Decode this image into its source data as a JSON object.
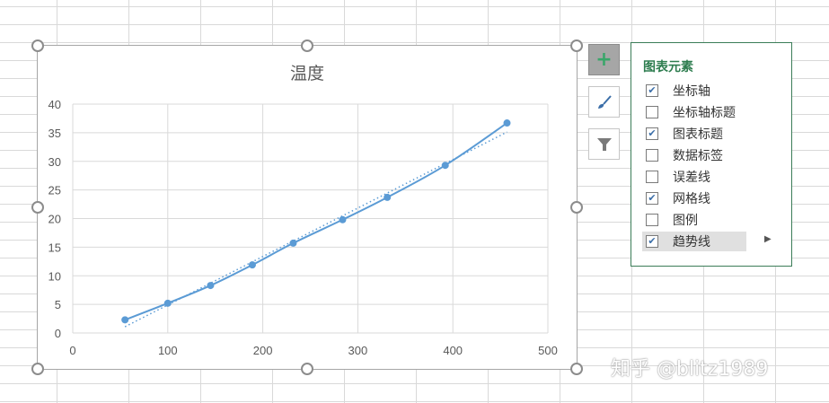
{
  "chart_data": {
    "type": "scatter",
    "title": "温度",
    "xlim": [
      0,
      500
    ],
    "ylim": [
      0,
      40
    ],
    "xticks": [
      "0",
      "100",
      "200",
      "300",
      "400",
      "500"
    ],
    "yticks": [
      "0",
      "5",
      "10",
      "15",
      "20",
      "25",
      "30",
      "35",
      "40"
    ],
    "grid": true,
    "series": [
      {
        "x": [
          55,
          100,
          145,
          189,
          232,
          284,
          331,
          392,
          457
        ],
        "y": [
          2.3,
          5.2,
          8.3,
          11.9,
          15.7,
          19.8,
          23.7,
          29.3,
          36.7
        ],
        "color": "#5b9bd5",
        "smooth": true
      }
    ],
    "trendline": {
      "type": "linear",
      "style": "dotted",
      "color": "#5b9bd5"
    }
  },
  "panel": {
    "title": "图表元素",
    "items": [
      {
        "label": "坐标轴",
        "checked": true
      },
      {
        "label": "坐标轴标题",
        "checked": false
      },
      {
        "label": "图表标题",
        "checked": true
      },
      {
        "label": "数据标签",
        "checked": false
      },
      {
        "label": "误差线",
        "checked": false
      },
      {
        "label": "网格线",
        "checked": true
      },
      {
        "label": "图例",
        "checked": false
      },
      {
        "label": "趋势线",
        "checked": true
      }
    ]
  },
  "watermark": "知乎 @blitz1989"
}
